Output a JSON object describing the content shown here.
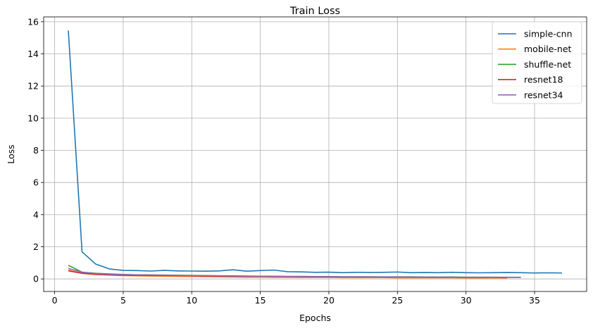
{
  "chart_data": {
    "type": "line",
    "title": "Train Loss",
    "xlabel": "Epochs",
    "ylabel": "Loss",
    "xlim": [
      -0.8,
      38.8
    ],
    "ylim": [
      -0.78,
      16.3
    ],
    "xticks": [
      0,
      5,
      10,
      15,
      20,
      25,
      30,
      35
    ],
    "yticks": [
      0,
      2,
      4,
      6,
      8,
      10,
      12,
      14,
      16
    ],
    "grid": true,
    "legend_position": "top-right",
    "series": [
      {
        "name": "simple-cnn",
        "color": "#1f77b4",
        "x": [
          1,
          2,
          3,
          4,
          5,
          6,
          7,
          8,
          9,
          10,
          11,
          12,
          13,
          14,
          15,
          16,
          17,
          18,
          19,
          20,
          21,
          22,
          23,
          24,
          25,
          26,
          27,
          28,
          29,
          30,
          31,
          32,
          33,
          34,
          35,
          36,
          37
        ],
        "y": [
          15.45,
          1.68,
          0.92,
          0.62,
          0.53,
          0.52,
          0.49,
          0.53,
          0.5,
          0.49,
          0.48,
          0.5,
          0.57,
          0.48,
          0.52,
          0.55,
          0.45,
          0.44,
          0.41,
          0.42,
          0.39,
          0.41,
          0.4,
          0.41,
          0.43,
          0.39,
          0.4,
          0.39,
          0.41,
          0.39,
          0.38,
          0.39,
          0.4,
          0.39,
          0.37,
          0.38,
          0.37
        ]
      },
      {
        "name": "mobile-net",
        "color": "#ff7f0e",
        "x": [
          1,
          2,
          3,
          4,
          5,
          6,
          7,
          8,
          9,
          10,
          11,
          12,
          13,
          14,
          15,
          16,
          17,
          18,
          19,
          20,
          21,
          22,
          23,
          24,
          25,
          26,
          27,
          28,
          29,
          30,
          31,
          32,
          33
        ],
        "y": [
          0.55,
          0.35,
          0.28,
          0.24,
          0.21,
          0.19,
          0.18,
          0.17,
          0.16,
          0.15,
          0.14,
          0.13,
          0.12,
          0.11,
          0.11,
          0.1,
          0.1,
          0.09,
          0.09,
          0.09,
          0.08,
          0.08,
          0.08,
          0.08,
          0.07,
          0.07,
          0.07,
          0.07,
          0.07,
          0.06,
          0.06,
          0.06,
          0.06
        ]
      },
      {
        "name": "shuffle-net",
        "color": "#2ca02c",
        "x": [
          1,
          2,
          3,
          4,
          5,
          6,
          7,
          8,
          9,
          10,
          11,
          12,
          13,
          14,
          15,
          16,
          17,
          18,
          19,
          20,
          21,
          22,
          23,
          24,
          25,
          26,
          27,
          28,
          29,
          30,
          31,
          32,
          33,
          34
        ],
        "y": [
          0.85,
          0.42,
          0.35,
          0.31,
          0.28,
          0.26,
          0.25,
          0.24,
          0.23,
          0.22,
          0.21,
          0.2,
          0.19,
          0.18,
          0.17,
          0.17,
          0.16,
          0.16,
          0.15,
          0.15,
          0.14,
          0.14,
          0.14,
          0.13,
          0.13,
          0.13,
          0.12,
          0.12,
          0.12,
          0.11,
          0.11,
          0.11,
          0.1,
          0.1
        ]
      },
      {
        "name": "resnet18",
        "color": "#d62728",
        "x": [
          1,
          2,
          3,
          4,
          5,
          6,
          7,
          8,
          9,
          10,
          11,
          12,
          13,
          14,
          15,
          16,
          17,
          18,
          19,
          20,
          21,
          22,
          23,
          24,
          25,
          26,
          27,
          28,
          29,
          30,
          31,
          32,
          33
        ],
        "y": [
          0.5,
          0.35,
          0.28,
          0.25,
          0.23,
          0.22,
          0.21,
          0.21,
          0.2,
          0.19,
          0.18,
          0.17,
          0.17,
          0.16,
          0.15,
          0.15,
          0.14,
          0.14,
          0.13,
          0.13,
          0.12,
          0.12,
          0.12,
          0.11,
          0.11,
          0.11,
          0.1,
          0.1,
          0.1,
          0.09,
          0.09,
          0.09,
          0.08
        ]
      },
      {
        "name": "resnet34",
        "color": "#9467bd",
        "x": [
          1,
          2,
          3,
          4,
          5,
          6,
          7,
          8,
          9,
          10,
          11,
          12,
          13,
          14,
          15,
          16,
          17,
          18,
          19,
          20,
          21,
          22,
          23,
          24,
          25,
          26,
          27,
          28,
          29,
          30,
          31,
          32,
          33,
          34
        ],
        "y": [
          0.65,
          0.42,
          0.33,
          0.29,
          0.27,
          0.25,
          0.24,
          0.23,
          0.22,
          0.21,
          0.2,
          0.19,
          0.18,
          0.17,
          0.16,
          0.16,
          0.15,
          0.15,
          0.14,
          0.14,
          0.13,
          0.13,
          0.13,
          0.12,
          0.12,
          0.12,
          0.11,
          0.11,
          0.11,
          0.1,
          0.1,
          0.1,
          0.1,
          0.09
        ]
      }
    ]
  }
}
